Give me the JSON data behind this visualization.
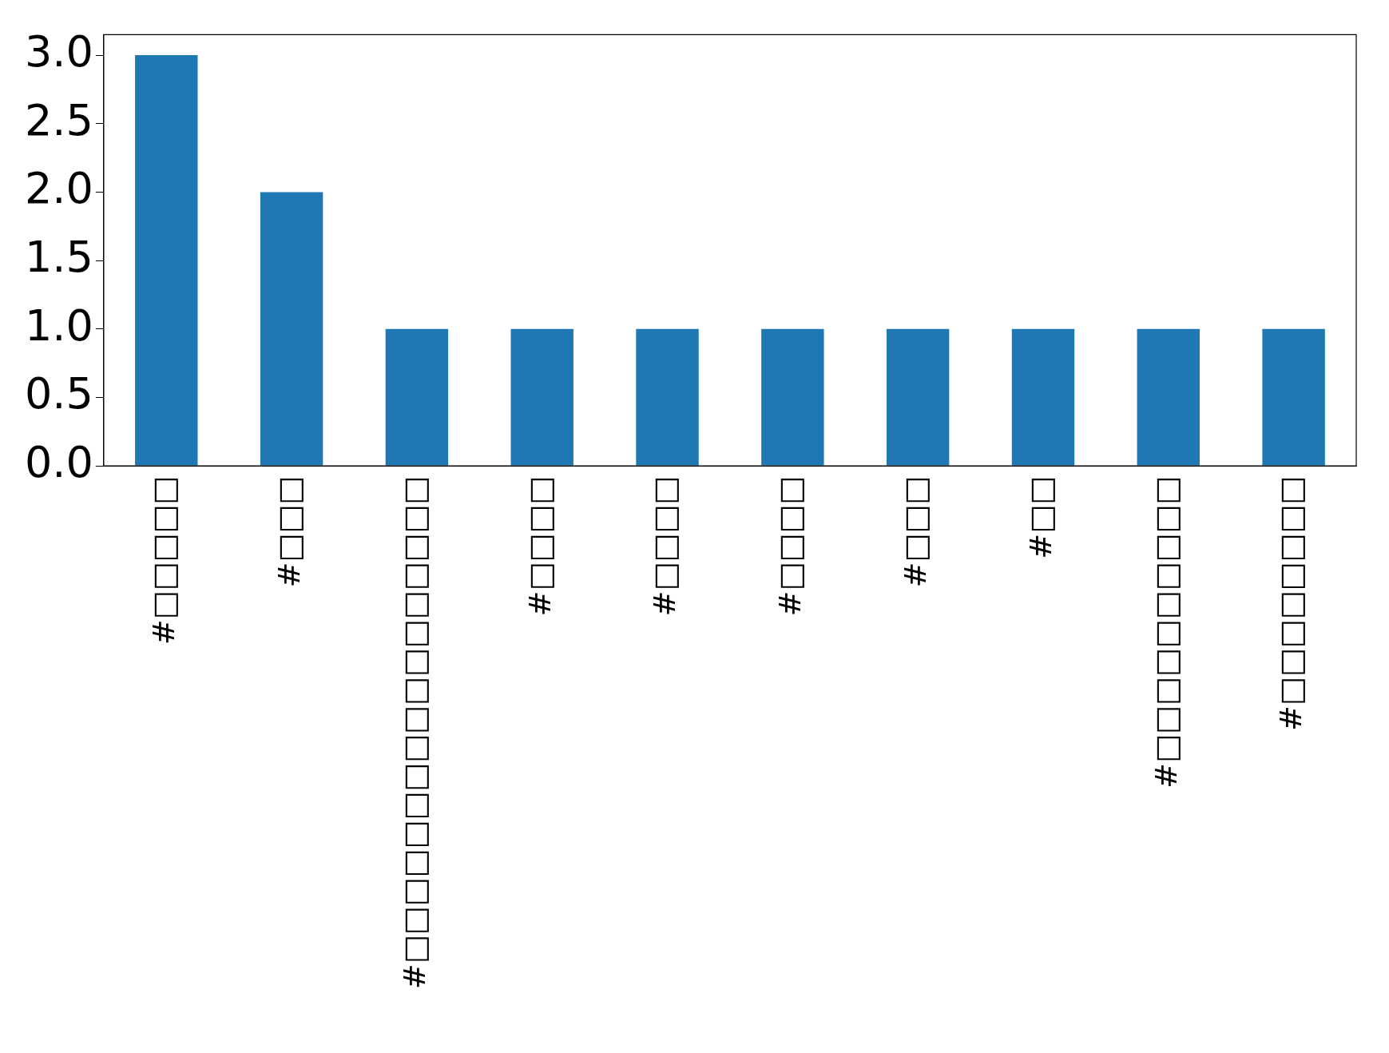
{
  "chart_data": {
    "type": "bar",
    "categories": [
      "#□□□□□",
      "#□□□",
      "#□□□□□□□□□□□□□□□□□",
      "#□□□□",
      "#□□□□",
      "#□□□□",
      "#□□□",
      "#□□",
      "#□□□□□□□□□□",
      "#□□□□□□□□"
    ],
    "values": [
      3,
      2,
      1,
      1,
      1,
      1,
      1,
      1,
      1,
      1
    ],
    "color": "#1f77b4",
    "ylim": [
      0,
      3.15
    ],
    "yticks": [
      {
        "value": 0,
        "label": "0.0"
      },
      {
        "value": 0.5,
        "label": "0.5"
      },
      {
        "value": 1,
        "label": "1.0"
      },
      {
        "value": 1.5,
        "label": "1.5"
      },
      {
        "value": 2,
        "label": "2.0"
      },
      {
        "value": 2.5,
        "label": "2.5"
      },
      {
        "value": 3,
        "label": "3.0"
      }
    ],
    "grid": false,
    "legend": false
  }
}
